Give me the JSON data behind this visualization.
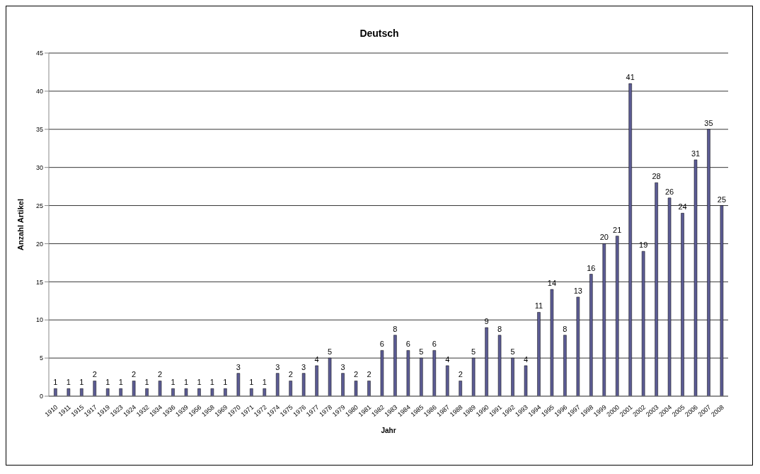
{
  "chart_data": {
    "type": "bar",
    "title": "Deutsch",
    "xlabel": "Jahr",
    "ylabel": "Anzahl Artikel",
    "categories": [
      "1910",
      "1911",
      "1915",
      "1917",
      "1919",
      "1923",
      "1924",
      "1932",
      "1934",
      "1936",
      "1939",
      "1956",
      "1958",
      "1969",
      "1970",
      "1971",
      "1972",
      "1974",
      "1975",
      "1976",
      "1977",
      "1978",
      "1979",
      "1980",
      "1981",
      "1982",
      "1983",
      "1984",
      "1985",
      "1986",
      "1987",
      "1988",
      "1989",
      "1990",
      "1991",
      "1992",
      "1993",
      "1994",
      "1995",
      "1996",
      "1997",
      "1998",
      "1999",
      "2000",
      "2001",
      "2002",
      "2003",
      "2004",
      "2005",
      "2006",
      "2007",
      "2008"
    ],
    "values": [
      1,
      1,
      1,
      2,
      1,
      1,
      2,
      1,
      2,
      1,
      1,
      1,
      1,
      1,
      3,
      1,
      1,
      3,
      2,
      3,
      4,
      5,
      3,
      2,
      2,
      6,
      8,
      6,
      5,
      6,
      4,
      2,
      5,
      9,
      8,
      5,
      4,
      11,
      14,
      8,
      13,
      16,
      20,
      21,
      41,
      19,
      28,
      26,
      24,
      31,
      35,
      25
    ],
    "color": "#5c5c94",
    "ylim": [
      0,
      45
    ],
    "yticks": [
      0,
      5,
      10,
      15,
      20,
      25,
      30,
      35,
      40,
      45
    ],
    "grid": "y",
    "data_labels": true
  }
}
